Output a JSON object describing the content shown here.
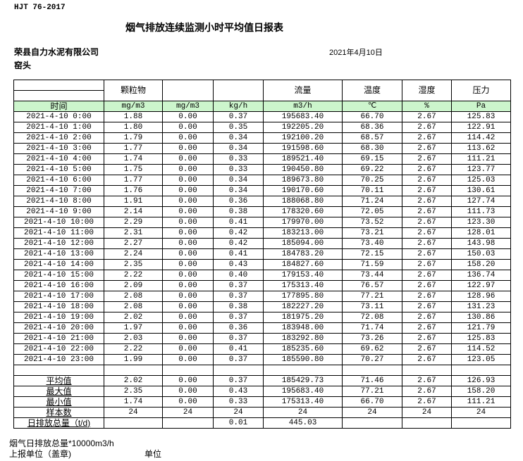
{
  "header": {
    "standard": "HJT  76-2017",
    "title": "烟气排放连续监测小时平均值日报表",
    "company": "荣县自力水泥有限公司",
    "unit_name": "窑头",
    "date": "2021年4月10日"
  },
  "table": {
    "columns": [
      "",
      "颗粒物",
      "",
      "",
      "流量",
      "温度",
      "湿度",
      "压力"
    ],
    "units": [
      "时间",
      "mg/m3",
      "mg/m3",
      "kg/h",
      "m3/h",
      "℃",
      "%",
      "Pa"
    ],
    "rows": [
      [
        "2021-4-10 0:00",
        "1.88",
        "0.00",
        "0.37",
        "195683.40",
        "66.70",
        "2.67",
        "125.83"
      ],
      [
        "2021-4-10 1:00",
        "1.80",
        "0.00",
        "0.35",
        "192205.20",
        "68.36",
        "2.67",
        "122.91"
      ],
      [
        "2021-4-10 2:00",
        "1.79",
        "0.00",
        "0.34",
        "192100.20",
        "68.57",
        "2.67",
        "114.42"
      ],
      [
        "2021-4-10 3:00",
        "1.77",
        "0.00",
        "0.34",
        "191598.60",
        "68.30",
        "2.67",
        "113.62"
      ],
      [
        "2021-4-10 4:00",
        "1.74",
        "0.00",
        "0.33",
        "189521.40",
        "69.15",
        "2.67",
        "111.21"
      ],
      [
        "2021-4-10 5:00",
        "1.75",
        "0.00",
        "0.33",
        "190450.80",
        "69.22",
        "2.67",
        "123.77"
      ],
      [
        "2021-4-10 6:00",
        "1.77",
        "0.00",
        "0.34",
        "189673.80",
        "70.25",
        "2.67",
        "125.03"
      ],
      [
        "2021-4-10 7:00",
        "1.76",
        "0.00",
        "0.34",
        "190170.60",
        "70.11",
        "2.67",
        "130.61"
      ],
      [
        "2021-4-10 8:00",
        "1.91",
        "0.00",
        "0.36",
        "188068.80",
        "71.24",
        "2.67",
        "127.74"
      ],
      [
        "2021-4-10 9:00",
        "2.14",
        "0.00",
        "0.38",
        "178320.60",
        "72.05",
        "2.67",
        "111.73"
      ],
      [
        "2021-4-10 10:00",
        "2.29",
        "0.00",
        "0.41",
        "179970.00",
        "73.52",
        "2.67",
        "123.30"
      ],
      [
        "2021-4-10 11:00",
        "2.31",
        "0.00",
        "0.42",
        "183213.00",
        "73.21",
        "2.67",
        "128.01"
      ],
      [
        "2021-4-10 12:00",
        "2.27",
        "0.00",
        "0.42",
        "185094.00",
        "73.40",
        "2.67",
        "143.98"
      ],
      [
        "2021-4-10 13:00",
        "2.24",
        "0.00",
        "0.41",
        "184783.20",
        "72.15",
        "2.67",
        "150.03"
      ],
      [
        "2021-4-10 14:00",
        "2.35",
        "0.00",
        "0.43",
        "184827.60",
        "71.59",
        "2.67",
        "158.20"
      ],
      [
        "2021-4-10 15:00",
        "2.22",
        "0.00",
        "0.40",
        "179153.40",
        "73.44",
        "2.67",
        "136.74"
      ],
      [
        "2021-4-10 16:00",
        "2.09",
        "0.00",
        "0.37",
        "175313.40",
        "76.57",
        "2.67",
        "122.97"
      ],
      [
        "2021-4-10 17:00",
        "2.08",
        "0.00",
        "0.37",
        "177895.80",
        "77.21",
        "2.67",
        "128.96"
      ],
      [
        "2021-4-10 18:00",
        "2.08",
        "0.00",
        "0.38",
        "182227.20",
        "73.11",
        "2.67",
        "131.23"
      ],
      [
        "2021-4-10 19:00",
        "2.02",
        "0.00",
        "0.37",
        "181975.20",
        "72.08",
        "2.67",
        "130.86"
      ],
      [
        "2021-4-10 20:00",
        "1.97",
        "0.00",
        "0.36",
        "183948.00",
        "71.74",
        "2.67",
        "121.79"
      ],
      [
        "2021-4-10 21:00",
        "2.03",
        "0.00",
        "0.37",
        "183292.80",
        "73.26",
        "2.67",
        "125.83"
      ],
      [
        "2021-4-10 22:00",
        "2.22",
        "0.00",
        "0.41",
        "185235.60",
        "69.62",
        "2.67",
        "114.52"
      ],
      [
        "2021-4-10 23:00",
        "1.99",
        "0.00",
        "0.37",
        "185590.80",
        "70.27",
        "2.67",
        "123.05"
      ]
    ],
    "summary": [
      [
        "平均值",
        "2.02",
        "0.00",
        "0.37",
        "185429.73",
        "71.46",
        "2.67",
        "126.93"
      ],
      [
        "最大值",
        "2.35",
        "0.00",
        "0.43",
        "195683.40",
        "77.21",
        "2.67",
        "158.20"
      ],
      [
        "最小值",
        "1.74",
        "0.00",
        "0.33",
        "175313.40",
        "66.70",
        "2.67",
        "111.21"
      ],
      [
        "样本数",
        "24",
        "24",
        "24",
        "24",
        "24",
        "24",
        "24"
      ],
      [
        "日排放总量（t/d)",
        "",
        "",
        "0.01",
        "445.03",
        "",
        "",
        ""
      ]
    ]
  },
  "footer": {
    "note": "烟气日排放总量*10000m3/h",
    "report_unit_label": "上报单位（盖章)",
    "unit_label": "单位"
  }
}
